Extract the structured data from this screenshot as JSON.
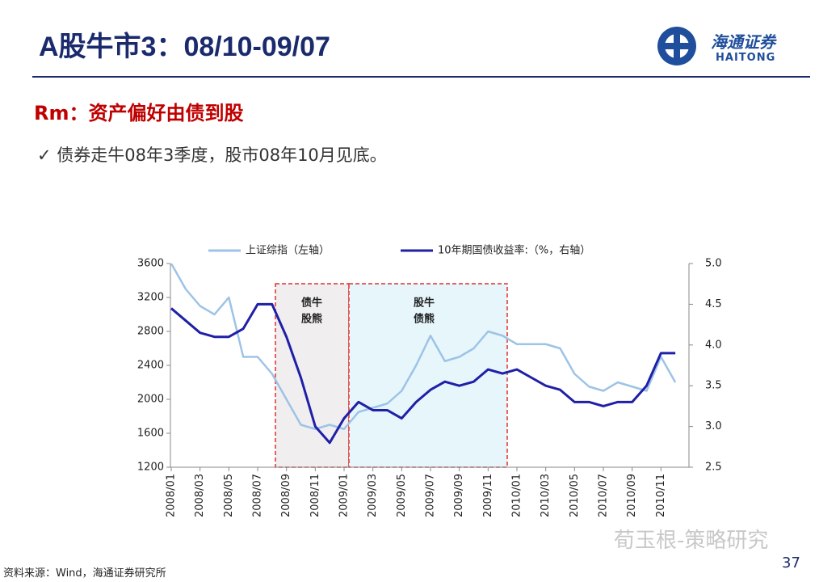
{
  "header": {
    "title": "A股牛市3：08/10-09/07",
    "logo": "海通证券",
    "logo_en": "HAITONG",
    "subtitle": "Rm：资产偏好由债到股",
    "bullet": "✓ 债券走牛08年3季度，股市08年10月见底。"
  },
  "chart_data": {
    "type": "line",
    "categories": [
      "2008/01",
      null,
      "2008/03",
      null,
      "2008/05",
      null,
      "2008/07",
      null,
      "2008/09",
      null,
      "2008/11",
      null,
      "2009/01",
      null,
      "2009/03",
      null,
      "2009/05",
      null,
      "2009/07",
      null,
      "2009/09",
      null,
      "2009/11",
      null,
      "2010/01",
      null,
      "2010/03",
      null,
      "2010/05",
      null,
      "2010/07",
      null,
      "2010/09",
      null,
      "2010/11",
      null
    ],
    "series": [
      {
        "name": "上证综指（左轴）",
        "color": "#9dc3e6",
        "values": [
          3600,
          3300,
          3100,
          3000,
          3200,
          2500,
          2500,
          2300,
          2000,
          1700,
          1650,
          1700,
          1650,
          1850,
          1900,
          1950,
          2100,
          2400,
          2750,
          2450,
          2500,
          2600,
          2800,
          2750,
          2650,
          2650,
          2650,
          2600,
          2300,
          2150,
          2100,
          2200,
          2150,
          2100,
          2500,
          2200
        ]
      },
      {
        "name": "10年期国债收益率:（%，右轴）",
        "color": "#1f1fa8",
        "axis": "y2",
        "values": [
          4.45,
          4.3,
          4.15,
          4.1,
          4.1,
          4.2,
          4.5,
          4.5,
          4.1,
          3.6,
          3.0,
          2.8,
          3.1,
          3.3,
          3.2,
          3.2,
          3.1,
          3.3,
          3.45,
          3.55,
          3.5,
          3.55,
          3.7,
          3.65,
          3.7,
          3.6,
          3.5,
          3.45,
          3.3,
          3.3,
          3.25,
          3.3,
          3.3,
          3.5,
          3.9,
          3.9
        ]
      }
    ],
    "ylim": [
      1200,
      3600
    ],
    "yticks": [
      1200,
      1600,
      2000,
      2400,
      2800,
      3200,
      3600
    ],
    "y2lim": [
      2.5,
      5.0
    ],
    "y2ticks": [
      2.5,
      {
        "value": 3,
        "label": "3.0"
      },
      3.5,
      {
        "value": 4,
        "label": "4.0"
      },
      4.5,
      {
        "value": 5,
        "label": "5.0"
      }
    ],
    "annotations": [
      [
        "债牛",
        "股熊"
      ],
      [
        "股牛",
        "债熊"
      ]
    ],
    "legend": "top"
  },
  "footer": {
    "source": "资料来源：Wind，海通证券研究所",
    "page": "37",
    "watermark": "荀玉根-策略研究"
  }
}
